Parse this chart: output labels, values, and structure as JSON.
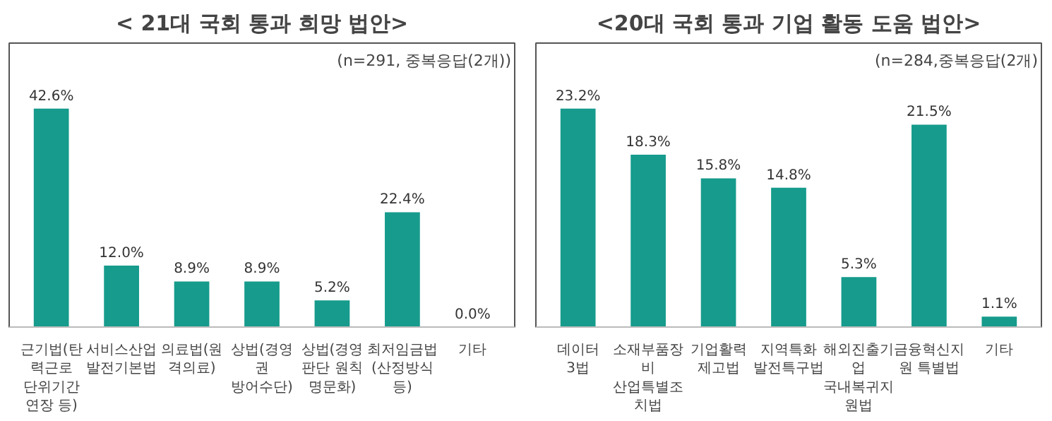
{
  "chart_data": [
    {
      "type": "bar",
      "title": "< 21대 국회 통과 희망 법안>",
      "annotations": [
        "(n=291, 중복응답(2개))"
      ],
      "categories": [
        "근기법(탄력근로 단위기간 연장 등)",
        "서비스산업 발전기본법",
        "의료법(원격의료)",
        "상법(경영권 방어수단)",
        "상법(경영판단 원칙 명문화)",
        "최저임금법(산정방식 등)",
        "기타"
      ],
      "values": [
        42.6,
        12.0,
        8.9,
        8.9,
        5.2,
        22.4,
        0.0
      ],
      "value_labels": [
        "42.6%",
        "12.0%",
        "8.9%",
        "8.9%",
        "5.2%",
        "22.4%",
        "0.0%"
      ],
      "color": "#169b8c"
    },
    {
      "type": "bar",
      "title": "<20대 국회 통과 기업 활동 도움 법안>",
      "annotations": [
        "(n=284,중복응답(2개)"
      ],
      "categories": [
        "데이터 3법",
        "소재부품장비 산업특별조치법",
        "기업활력 제고법",
        "지역특화 발전특구법",
        "해외진출기업 국내복귀지원법",
        "금융혁신지원 특별법",
        "기타"
      ],
      "values": [
        23.2,
        18.3,
        15.8,
        14.8,
        5.3,
        21.5,
        1.1
      ],
      "value_labels": [
        "23.2%",
        "18.3%",
        "15.8%",
        "14.8%",
        "5.3%",
        "21.5%",
        "1.1%"
      ],
      "color": "#169b8c"
    }
  ]
}
